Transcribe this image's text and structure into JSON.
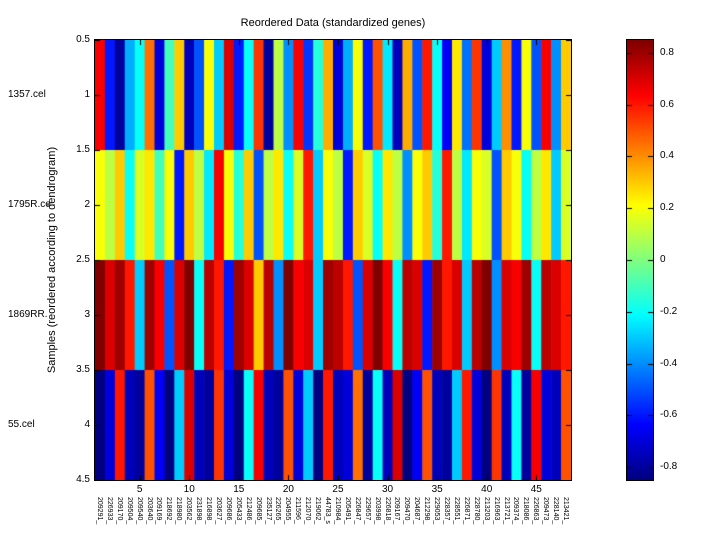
{
  "chart_data": {
    "type": "heatmap",
    "title": "Reordered Data (standardized genes)",
    "ylabel": "Samples (reordered according to dendrogram)",
    "colormap": "jet",
    "clim": [
      -0.85,
      0.85
    ],
    "rows": [
      "1357.cel",
      "1795R.ce",
      "1869RR.",
      "55.cel"
    ],
    "y_axis_ticks": [
      "0.5",
      "1",
      "1.5",
      "2",
      "2.5",
      "3",
      "3.5",
      "4",
      "4.5"
    ],
    "x_axis_ticks": [
      "5",
      "10",
      "15",
      "20",
      "25",
      "30",
      "35",
      "40",
      "45"
    ],
    "colorbar_ticks": [
      "0.8",
      "0.6",
      "0.4",
      "0.2",
      "0",
      "-0.2",
      "-0.4",
      "-0.6",
      "-0.8"
    ],
    "columns": [
      "209291_",
      "226933_",
      "209170_",
      "209504_",
      "209540_",
      "203640_",
      "209169_",
      "218692_",
      "218980_",
      "203562_",
      "231898_",
      "216898_",
      "203627_",
      "209686_",
      "205433_",
      "212486_",
      "209685_",
      "235127_",
      "226265_",
      "204955_",
      "211596_",
      "212070_",
      "219062_",
      "44783_s",
      "210984_",
      "205491_",
      "226847_",
      "229657_",
      "203998_",
      "226818_",
      "209167_",
      "209470_",
      "204687_",
      "212298_",
      "229053_",
      "228357_",
      "228551_",
      "226871_",
      "228780_",
      "213203_",
      "216963_",
      "213721_",
      "209374_",
      "218086_",
      "226863_",
      "209473_",
      "228140_",
      "213421_"
    ],
    "values": [
      [
        0.65,
        -0.6,
        -0.8,
        -0.35,
        -0.2,
        0.45,
        -0.7,
        -0.1,
        0.3,
        -0.75,
        -0.5,
        0.2,
        -0.3,
        0.7,
        -0.6,
        -0.2,
        0.55,
        -0.8,
        0.1,
        -0.4,
        0.65,
        -0.55,
        -0.15,
        0.35,
        -0.7,
        -0.35,
        0.2,
        -0.6,
        0.5,
        -0.25,
        -0.75,
        0.35,
        -0.5,
        0.6,
        -0.2,
        -0.65,
        0.25,
        -0.45,
        0.55,
        -0.7,
        -0.3,
        0.4,
        -0.6,
        0.2,
        -0.5,
        0.65,
        -0.4,
        0.3
      ],
      [
        0.2,
        0.1,
        0.3,
        -0.2,
        0.15,
        0.25,
        -0.1,
        0.2,
        -0.6,
        0.3,
        0.1,
        -0.25,
        0.65,
        0.2,
        -0.15,
        0.3,
        -0.5,
        0.1,
        0.25,
        -0.2,
        0.15,
        0.6,
        -0.3,
        0.2,
        0.1,
        -0.6,
        0.3,
        0.15,
        -0.2,
        0.25,
        0.1,
        -0.4,
        0.2,
        0.3,
        -0.15,
        0.6,
        0.1,
        -0.25,
        0.2,
        0.15,
        -0.5,
        0.3,
        0.2,
        -0.2,
        0.1,
        0.25,
        -0.3,
        0.15
      ],
      [
        0.85,
        0.7,
        0.8,
        0.6,
        -0.3,
        0.8,
        0.65,
        -0.5,
        0.7,
        0.85,
        -0.2,
        0.75,
        0.6,
        -0.6,
        0.8,
        0.7,
        0.3,
        0.75,
        -0.4,
        0.85,
        0.65,
        0.7,
        -0.3,
        0.8,
        0.75,
        0.6,
        -0.5,
        0.7,
        0.85,
        0.65,
        -0.2,
        0.75,
        0.7,
        -0.6,
        0.8,
        0.6,
        0.7,
        -0.3,
        0.75,
        0.85,
        -0.4,
        0.7,
        0.65,
        0.8,
        -0.2,
        0.75,
        0.7,
        0.6
      ],
      [
        -0.85,
        -0.7,
        0.6,
        -0.75,
        -0.8,
        0.5,
        -0.65,
        -0.85,
        -0.3,
        0.7,
        -0.75,
        -0.8,
        0.55,
        -0.7,
        -0.85,
        -0.2,
        0.65,
        -0.75,
        -0.8,
        0.5,
        -0.7,
        -0.3,
        -0.85,
        0.6,
        -0.75,
        -0.7,
        0.45,
        -0.8,
        -0.2,
        -0.75,
        0.7,
        -0.85,
        -0.65,
        0.5,
        -0.75,
        -0.8,
        -0.3,
        0.6,
        -0.7,
        -0.85,
        0.55,
        -0.75,
        -0.2,
        -0.8,
        0.65,
        -0.7,
        -0.75,
        0.5
      ]
    ]
  }
}
